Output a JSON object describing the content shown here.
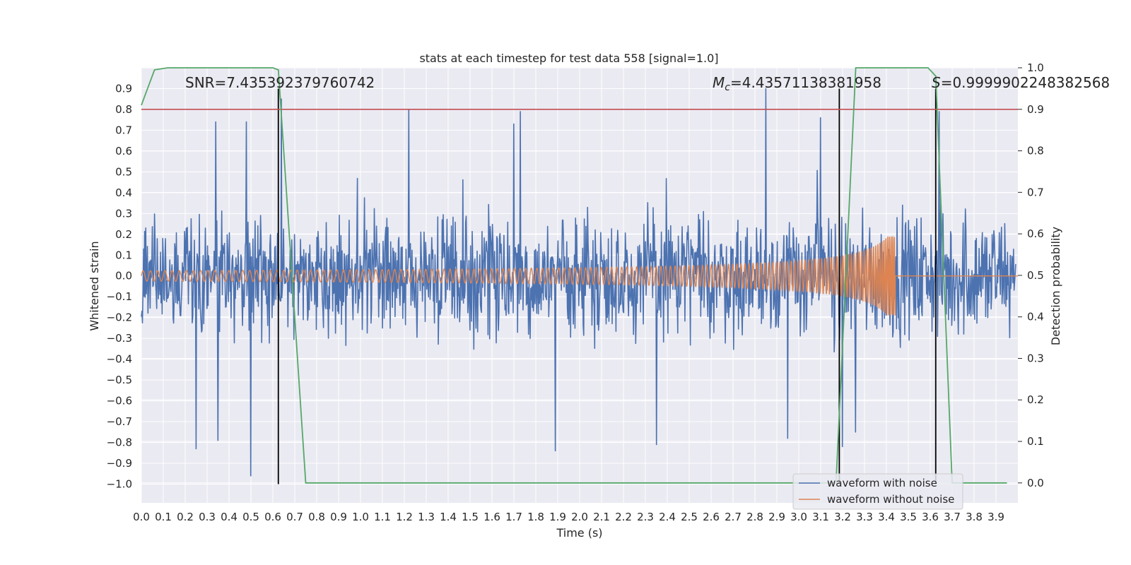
{
  "chart_data": {
    "type": "line",
    "title": "stats at each timestep for test data 558 [signal=1.0]",
    "xlabel": "Time (s)",
    "ylabel": "Whitened strain",
    "ylabel_right": "Detection probability",
    "xlim": [
      0.0,
      4.0
    ],
    "ylim": [
      -1.09,
      1.0
    ],
    "ylim_right": [
      -0.048,
      1.0
    ],
    "x_ticks": [
      0.0,
      0.1,
      0.2,
      0.3,
      0.4,
      0.5,
      0.6,
      0.7,
      0.8,
      0.9,
      1.0,
      1.1,
      1.2,
      1.3,
      1.4,
      1.5,
      1.6,
      1.7,
      1.8,
      1.9,
      2.0,
      2.1,
      2.2,
      2.3,
      2.4,
      2.5,
      2.6,
      2.7,
      2.8,
      2.9,
      3.0,
      3.1,
      3.2,
      3.3,
      3.4,
      3.5,
      3.6,
      3.7,
      3.8,
      3.9
    ],
    "x_tick_labels": [
      "0.0",
      "0.1",
      "0.2",
      "0.3",
      "0.4",
      "0.5",
      "0.6",
      "0.7",
      "0.8",
      "0.9",
      "1.0",
      "1.1",
      "1.2",
      "1.3",
      "1.4",
      "1.5",
      "1.6",
      "1.7",
      "1.8",
      "1.9",
      "2.0",
      "2.1",
      "2.2",
      "2.3",
      "2.4",
      "2.5",
      "2.6",
      "2.7",
      "2.8",
      "2.9",
      "3.0",
      "3.1",
      "3.2",
      "3.3",
      "3.4",
      "3.5",
      "3.6",
      "3.7",
      "3.8",
      "3.9"
    ],
    "y_ticks": [
      0.9,
      0.8,
      0.7,
      0.6,
      0.5,
      0.4,
      0.3,
      0.2,
      0.1,
      0.0,
      -0.1,
      -0.2,
      -0.3,
      -0.4,
      -0.5,
      -0.6,
      -0.7,
      -0.8,
      -0.9,
      -1.0
    ],
    "y_tick_labels": [
      "0.9",
      "0.8",
      "0.7",
      "0.6",
      "0.5",
      "0.4",
      "0.3",
      "0.2",
      "0.1",
      "0.0",
      "−0.1",
      "−0.2",
      "−0.3",
      "−0.4",
      "−0.5",
      "−0.6",
      "−0.7",
      "−0.8",
      "−0.9",
      "−1.0"
    ],
    "y_ticks_right": [
      1.0,
      0.9,
      0.8,
      0.7,
      0.6,
      0.5,
      0.4,
      0.3,
      0.2,
      0.1,
      0.0
    ],
    "y_tick_labels_right": [
      "1.0",
      "0.9",
      "0.8",
      "0.7",
      "0.6",
      "0.5",
      "0.4",
      "0.3",
      "0.2",
      "0.1",
      "0.0"
    ],
    "annotations": {
      "snr": "SNR=7.435392379760742",
      "mc_symbol": "M",
      "mc_subscript": "c",
      "mc_value": "=4.43571138381958",
      "s_symbol": "S",
      "s_value": "=0.9999902248382568"
    },
    "threshold": {
      "value": 0.9,
      "axis": "right",
      "color": "#c44e52"
    },
    "vlines": [
      0.625,
      3.185,
      3.625
    ],
    "vline_range": [
      -1.0,
      0.9
    ],
    "series": [
      {
        "name": "waveform with noise",
        "color": "#4c72b0",
        "description": "noisy whitened strain, amplitude envelope roughly ±0.45 with spikes up to ±0.9",
        "peaks": [
          {
            "x": 0.34,
            "y": 0.74
          },
          {
            "x": 0.48,
            "y": 0.74
          },
          {
            "x": 0.5,
            "y": -0.96
          },
          {
            "x": 0.64,
            "y": 0.85
          },
          {
            "x": 0.25,
            "y": -0.83
          },
          {
            "x": 0.35,
            "y": -0.79
          },
          {
            "x": 1.22,
            "y": 0.8
          },
          {
            "x": 1.7,
            "y": 0.73
          },
          {
            "x": 1.73,
            "y": 0.79
          },
          {
            "x": 1.89,
            "y": -0.84
          },
          {
            "x": 2.35,
            "y": -0.81
          },
          {
            "x": 2.85,
            "y": 0.9
          },
          {
            "x": 2.95,
            "y": -0.78
          },
          {
            "x": 3.1,
            "y": 0.76
          },
          {
            "x": 3.2,
            "y": -0.82
          },
          {
            "x": 3.64,
            "y": 0.79
          },
          {
            "x": 3.26,
            "y": -0.75
          }
        ]
      },
      {
        "name": "waveform without noise",
        "color": "#dd8452",
        "description": "chirp signal, amplitude growing from ~0.025 to ~0.19, merger near t=3.44 s, zero afterwards",
        "t_merger": 3.44,
        "amp_start": 0.025,
        "amp_merger": 0.19
      },
      {
        "name": "detection probability",
        "color": "#55a868",
        "axis": "right",
        "x": [
          0.0,
          0.06,
          0.12,
          0.2,
          0.3,
          0.4,
          0.5,
          0.6,
          0.625,
          0.75,
          0.9,
          1.5,
          2.0,
          2.5,
          3.0,
          3.17,
          3.26,
          3.4,
          3.5,
          3.59,
          3.625,
          3.7,
          3.8,
          3.95
        ],
        "y": [
          0.91,
          0.995,
          1.0,
          1.0,
          1.0,
          1.0,
          1.0,
          1.0,
          0.995,
          0.0,
          0.0,
          0.0,
          0.0,
          0.0,
          0.0,
          0.0,
          1.0,
          1.0,
          1.0,
          1.0,
          0.98,
          0.0,
          0.0,
          0.0
        ]
      }
    ],
    "legend_position": "bottom-right"
  }
}
